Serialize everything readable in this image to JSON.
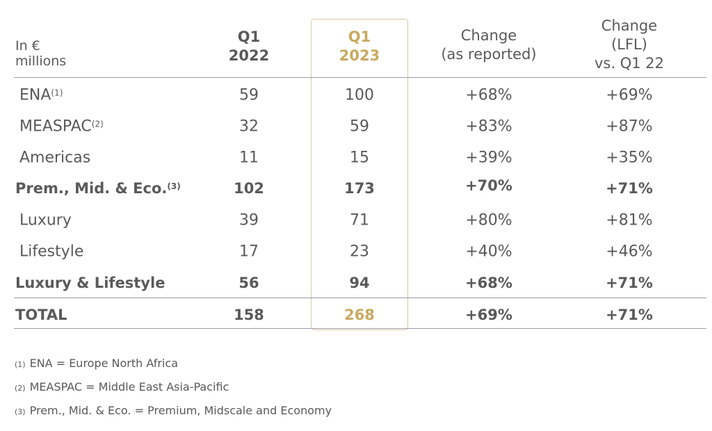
{
  "table": {
    "units_label": "In € millions",
    "headers": {
      "q1_2022": [
        "Q1",
        "2022"
      ],
      "q1_2023": [
        "Q1",
        "2023"
      ],
      "change_reported": [
        "Change",
        "(as reported)"
      ],
      "change_lfl": [
        "Change",
        "(LFL)",
        "vs. Q1 22"
      ]
    },
    "rows": [
      {
        "label": "ENA",
        "note": "(1)",
        "q1_2022": "59",
        "q1_2023": "100",
        "change_reported": "+68%",
        "change_lfl": "+69%",
        "bold": false
      },
      {
        "label": "MEASPAC",
        "note": "(2)",
        "q1_2022": "32",
        "q1_2023": "59",
        "change_reported": "+83%",
        "change_lfl": "+87%",
        "bold": false
      },
      {
        "label": "Americas",
        "note": "",
        "q1_2022": "11",
        "q1_2023": "15",
        "change_reported": "+39%",
        "change_lfl": "+35%",
        "bold": false
      },
      {
        "label": "Prem., Mid. & Eco.",
        "note": "(3)",
        "q1_2022": "102",
        "q1_2023": "173",
        "change_reported": "+70%",
        "change_lfl": "+71%",
        "bold": true
      },
      {
        "label": "Luxury",
        "note": "",
        "q1_2022": "39",
        "q1_2023": "71",
        "change_reported": "+80%",
        "change_lfl": "+81%",
        "bold": false
      },
      {
        "label": "Lifestyle",
        "note": "",
        "q1_2022": "17",
        "q1_2023": "23",
        "change_reported": "+40%",
        "change_lfl": "+46%",
        "bold": false
      },
      {
        "label": "Luxury & Lifestyle",
        "note": "",
        "q1_2022": "56",
        "q1_2023": "94",
        "change_reported": "+68%",
        "change_lfl": "+71%",
        "bold": true
      },
      {
        "label": "TOTAL",
        "note": "",
        "q1_2022": "158",
        "q1_2023": "268",
        "change_reported": "+69%",
        "change_lfl": "+71%",
        "bold": true
      }
    ]
  },
  "footnotes": [
    {
      "marker": "(1)",
      "text": "ENA = Europe North Africa"
    },
    {
      "marker": "(2)",
      "text": "MEASPAC = Middle East Asia-Pacific"
    },
    {
      "marker": "(3)",
      "text": "Prem., Mid. & Eco. = Premium, Midscale and Economy"
    }
  ],
  "colors": {
    "text": "#595959",
    "highlight": "#c8a95f",
    "highlight_border": "#d8c8a0",
    "rule": "#9a9aaa"
  }
}
